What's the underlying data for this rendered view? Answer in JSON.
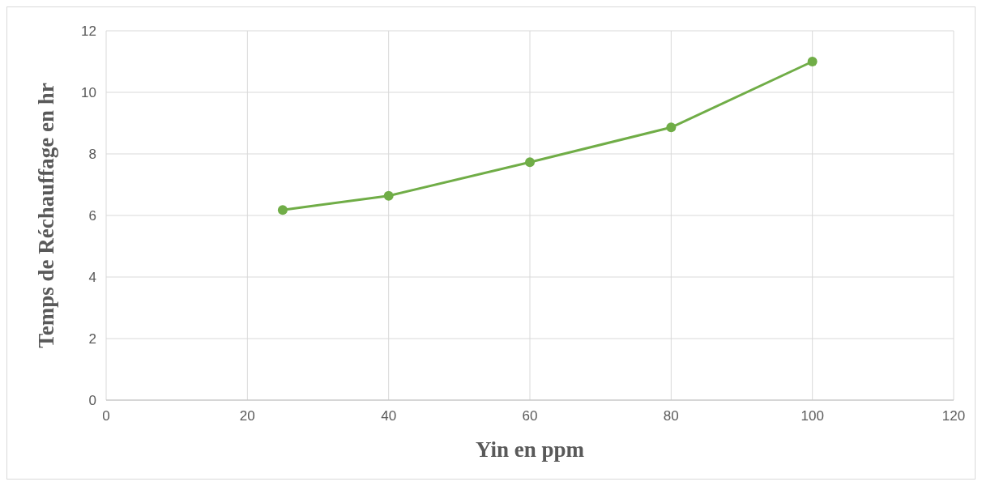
{
  "chart_data": {
    "type": "line",
    "xlabel": "Yin en ppm",
    "ylabel": "Temps de Réchauffage en hr",
    "x": [
      25,
      40,
      60,
      80,
      100
    ],
    "series": [
      {
        "color": "#70ad47",
        "values": [
          6.18,
          6.64,
          7.73,
          8.86,
          11.0
        ]
      }
    ],
    "xlim": [
      0,
      120
    ],
    "xticks": [
      0,
      20,
      40,
      60,
      80,
      100,
      120
    ],
    "ylim": [
      0,
      12
    ],
    "yticks": [
      0,
      2,
      4,
      6,
      8,
      10,
      12
    ],
    "grid": true,
    "marker": "circle",
    "line_style": "solid"
  }
}
